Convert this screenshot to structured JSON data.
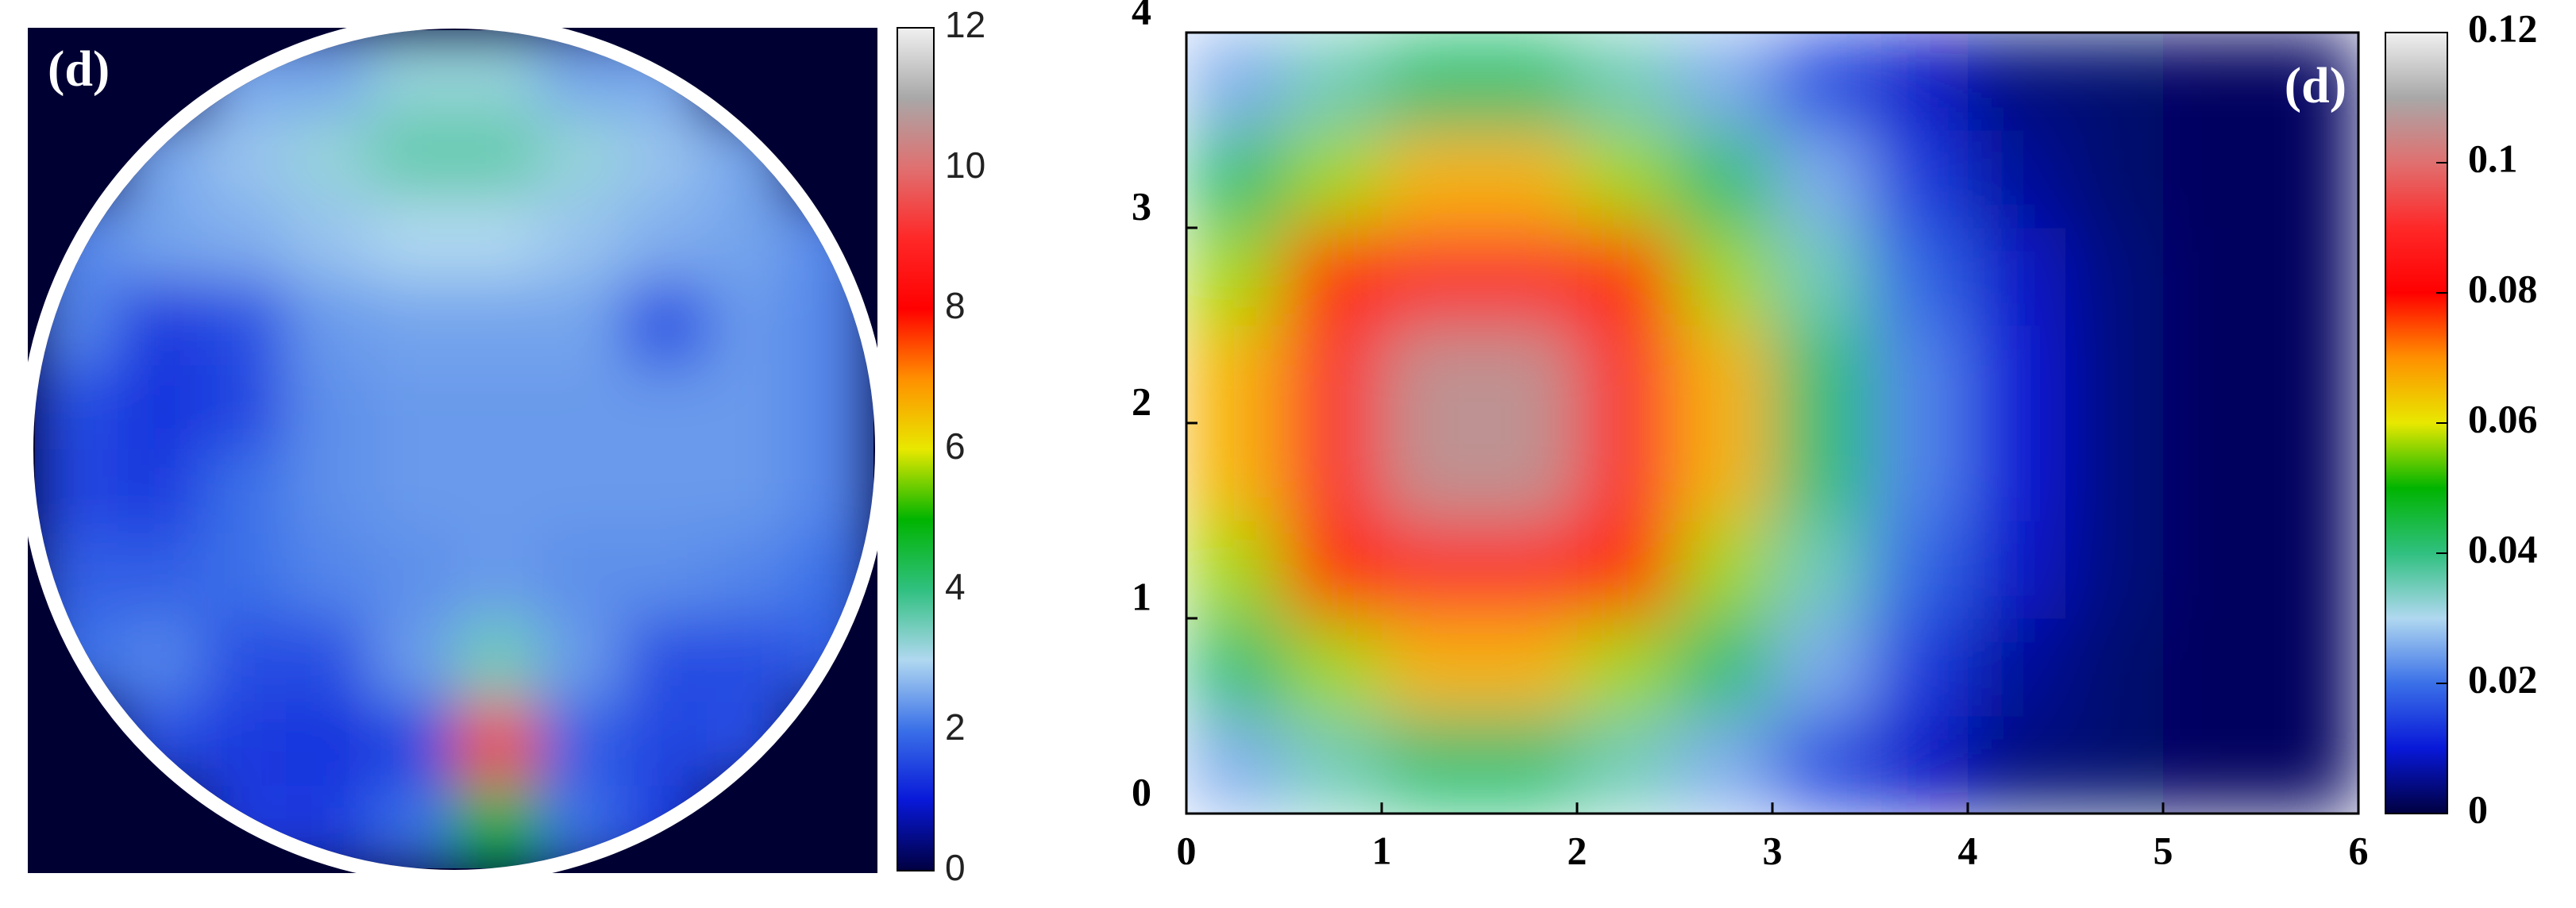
{
  "chart_data": [
    {
      "type": "heatmap",
      "label": "(d)",
      "shape": "circle",
      "z": [
        [
          null,
          null,
          2.5,
          2.5,
          3.2,
          3.2,
          2.5,
          2.5,
          null,
          null
        ],
        [
          null,
          2.5,
          2.8,
          3.2,
          3.6,
          3.6,
          3.2,
          2.8,
          2.5,
          null
        ],
        [
          2.2,
          2.5,
          2.6,
          2.8,
          3.0,
          3.0,
          2.8,
          2.6,
          2.5,
          2.2
        ],
        [
          2.2,
          1.4,
          1.6,
          2.4,
          2.5,
          2.5,
          2.5,
          1.6,
          2.4,
          2.2
        ],
        [
          1.6,
          1.3,
          1.5,
          2.3,
          2.4,
          2.4,
          2.4,
          2.4,
          2.4,
          2.2
        ],
        [
          1.5,
          1.4,
          2.0,
          2.3,
          2.4,
          2.4,
          2.4,
          2.4,
          2.4,
          2.2
        ],
        [
          1.8,
          1.8,
          2.0,
          2.2,
          2.3,
          2.4,
          2.3,
          2.3,
          2.2,
          2.0
        ],
        [
          2.0,
          2.2,
          1.6,
          1.6,
          2.4,
          3.5,
          2.4,
          1.6,
          1.6,
          1.8
        ],
        [
          null,
          1.6,
          1.4,
          1.3,
          1.5,
          9.5,
          1.8,
          1.5,
          1.6,
          null
        ],
        [
          null,
          null,
          1.4,
          1.4,
          2.0,
          5.0,
          2.0,
          1.4,
          null,
          null
        ]
      ],
      "zlim": [
        0,
        12
      ],
      "zticks": [
        0,
        2,
        4,
        6,
        8,
        10,
        12
      ],
      "colormap": [
        "#000040",
        "#0818d8",
        "#3a70e8",
        "#b0d8f0",
        "#30c080",
        "#00b400",
        "#e8e800",
        "#ff9000",
        "#ff0000",
        "#ff2828",
        "#e07070",
        "#a8a8a8",
        "#f0f0f0"
      ],
      "background": "#000033"
    },
    {
      "type": "heatmap",
      "label": "(d)",
      "xlim": [
        0,
        6
      ],
      "ylim": [
        0,
        4
      ],
      "xticks": [
        0,
        1,
        2,
        3,
        4,
        5,
        6
      ],
      "yticks": [
        0,
        1,
        2,
        3,
        4
      ],
      "z": [
        [
          0.026,
          0.035,
          0.041,
          0.041,
          0.035,
          0.026,
          0.016,
          0.009,
          0.004,
          0.003,
          0.002,
          0.002
        ],
        [
          0.041,
          0.057,
          0.066,
          0.066,
          0.057,
          0.041,
          0.026,
          0.014,
          0.006,
          0.003,
          0.002,
          0.002
        ],
        [
          0.057,
          0.077,
          0.091,
          0.091,
          0.077,
          0.057,
          0.035,
          0.019,
          0.009,
          0.004,
          0.002,
          0.002
        ],
        [
          0.066,
          0.091,
          0.106,
          0.106,
          0.091,
          0.066,
          0.041,
          0.022,
          0.01,
          0.004,
          0.002,
          0.002
        ],
        [
          0.066,
          0.091,
          0.106,
          0.106,
          0.091,
          0.066,
          0.041,
          0.022,
          0.01,
          0.004,
          0.002,
          0.002
        ],
        [
          0.057,
          0.077,
          0.091,
          0.091,
          0.077,
          0.057,
          0.035,
          0.019,
          0.009,
          0.004,
          0.002,
          0.002
        ],
        [
          0.041,
          0.057,
          0.066,
          0.066,
          0.057,
          0.041,
          0.026,
          0.014,
          0.006,
          0.003,
          0.002,
          0.002
        ],
        [
          0.026,
          0.035,
          0.041,
          0.041,
          0.035,
          0.026,
          0.016,
          0.009,
          0.004,
          0.003,
          0.002,
          0.002
        ]
      ],
      "zlim": [
        0,
        0.12
      ],
      "zticks": [
        0,
        0.02,
        0.04,
        0.06,
        0.08,
        0.1,
        0.12
      ],
      "colormap": [
        "#000040",
        "#0818d8",
        "#3a70e8",
        "#b0d8f0",
        "#30c080",
        "#00b400",
        "#e8e800",
        "#ff9000",
        "#ff0000",
        "#ff2828",
        "#e07070",
        "#a8a8a8",
        "#f0f0f0"
      ]
    }
  ]
}
